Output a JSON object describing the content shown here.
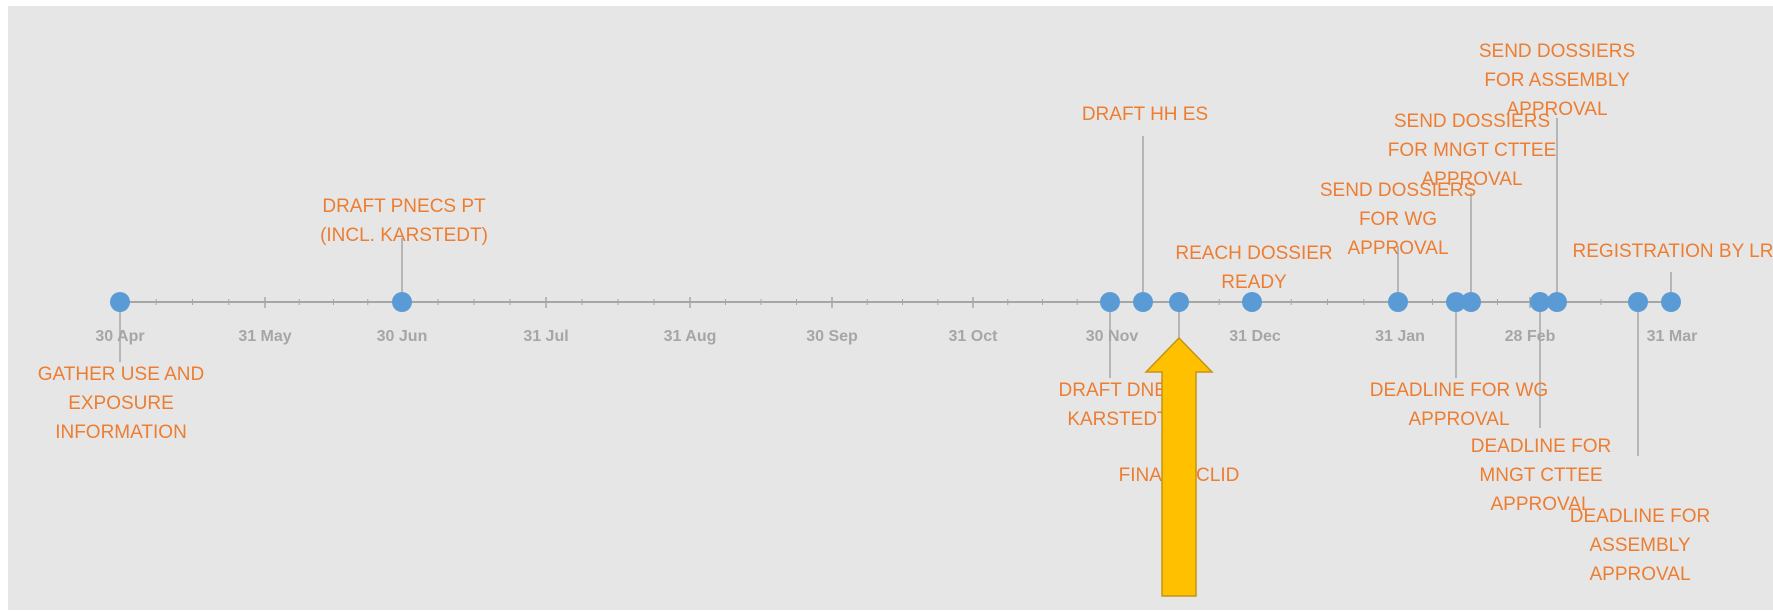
{
  "colors": {
    "background": "#e6e6e6",
    "axis": "#a6a6a6",
    "marker": "#5b9bd5",
    "label_text": "#ed7d31",
    "tick_label_text": "#a6a6a6",
    "arrow_fill": "#ffc000",
    "arrow_stroke": "#c69214"
  },
  "axis": {
    "tick_labels": [
      "30 Apr",
      "31 May",
      "30 Jun",
      "31 Jul",
      "31 Aug",
      "30 Sep",
      "31 Oct",
      "30 Nov",
      "31 Dec",
      "31 Jan",
      "28 Feb",
      "31 Mar"
    ]
  },
  "milestones": [
    {
      "id": "gather-use-exposure",
      "lines": [
        "GATHER USE AND",
        "EXPOSURE",
        "INFORMATION"
      ]
    },
    {
      "id": "draft-pnecs-pt",
      "lines": [
        "DRAFT PNECS PT",
        "(INCL. KARSTEDT)"
      ]
    },
    {
      "id": "draft-dnel-karstedt",
      "lines": [
        "DRAFT DNEL",
        "KARSTEDT"
      ]
    },
    {
      "id": "draft-hh-es",
      "lines": [
        "DRAFT HH ES"
      ]
    },
    {
      "id": "final-iuclid",
      "lines": [
        "FINAL IUCLID"
      ]
    },
    {
      "id": "reach-dossier-ready",
      "lines": [
        "REACH DOSSIER",
        "READY"
      ]
    },
    {
      "id": "send-dossiers-wg",
      "lines": [
        "SEND DOSSIERS",
        "FOR WG",
        "APPROVAL"
      ]
    },
    {
      "id": "deadline-wg",
      "lines": [
        "DEADLINE FOR WG",
        "APPROVAL"
      ]
    },
    {
      "id": "send-dossiers-mngt",
      "lines": [
        "SEND DOSSIERS",
        "FOR MNGT CTTEE",
        "APPROVAL"
      ]
    },
    {
      "id": "deadline-mngt",
      "lines": [
        "DEADLINE FOR",
        "MNGT CTTEE",
        "APPROVAL"
      ]
    },
    {
      "id": "send-dossiers-assembly",
      "lines": [
        "SEND DOSSIERS",
        "FOR ASSEMBLY",
        "APPROVAL"
      ]
    },
    {
      "id": "deadline-assembly",
      "lines": [
        "DEADLINE FOR",
        "ASSEMBLY",
        "APPROVAL"
      ]
    },
    {
      "id": "registration-by-lr",
      "lines": [
        "REGISTRATION BY LR"
      ]
    }
  ],
  "highlight_arrow": {
    "points_to": "final-iuclid",
    "icon": "up-arrow-icon"
  }
}
